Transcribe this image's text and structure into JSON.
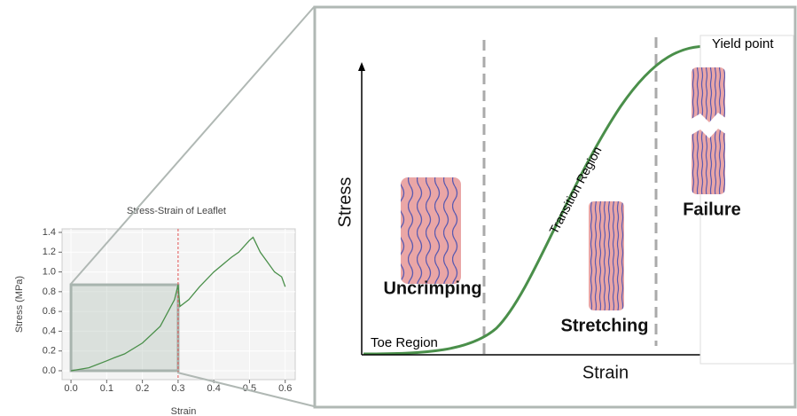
{
  "chart_data": {
    "type": "line",
    "title": "Stress-Strain of Leaflet",
    "xlabel": "Strain",
    "ylabel": "Stress (MPa)",
    "x": [
      0,
      0.05,
      0.1,
      0.12,
      0.15,
      0.2,
      0.25,
      0.29,
      0.3,
      0.305,
      0.33,
      0.36,
      0.4,
      0.45,
      0.47,
      0.5,
      0.51,
      0.53,
      0.55,
      0.57,
      0.59,
      0.6
    ],
    "series": [
      {
        "name": "Stress",
        "color": "#4a8f4a",
        "values": [
          0,
          0.03,
          0.1,
          0.13,
          0.17,
          0.28,
          0.45,
          0.72,
          0.87,
          0.65,
          0.72,
          0.85,
          1.0,
          1.15,
          1.2,
          1.32,
          1.35,
          1.2,
          1.1,
          1.0,
          0.95,
          0.85
        ]
      }
    ],
    "xlim": [
      -0.025,
      0.628
    ],
    "ylim": [
      -0.09,
      1.436
    ],
    "xticks": [
      {
        "value": 0,
        "label": "0.0"
      },
      0.1,
      0.2,
      0.3,
      0.4,
      0.5,
      0.6
    ],
    "yticks": [
      {
        "value": 0,
        "label": "0.0"
      },
      0.2,
      0.4,
      0.6,
      0.8,
      {
        "value": 1,
        "label": "1.0"
      },
      1.2,
      1.4
    ],
    "grid": true,
    "vline": 0.3,
    "vline_color": "#e05050",
    "highlight": {
      "xlim": [
        0,
        0.3
      ],
      "ylim": [
        0,
        0.87
      ]
    }
  },
  "diagram": {
    "y_axis": "Stress",
    "x_axis": "Strain",
    "toe": "Toe Region",
    "transition": "Transition Region",
    "uncrimping": "Uncrimping",
    "stretching": "Stretching",
    "failure": "Failure",
    "yield": "Yield point"
  }
}
